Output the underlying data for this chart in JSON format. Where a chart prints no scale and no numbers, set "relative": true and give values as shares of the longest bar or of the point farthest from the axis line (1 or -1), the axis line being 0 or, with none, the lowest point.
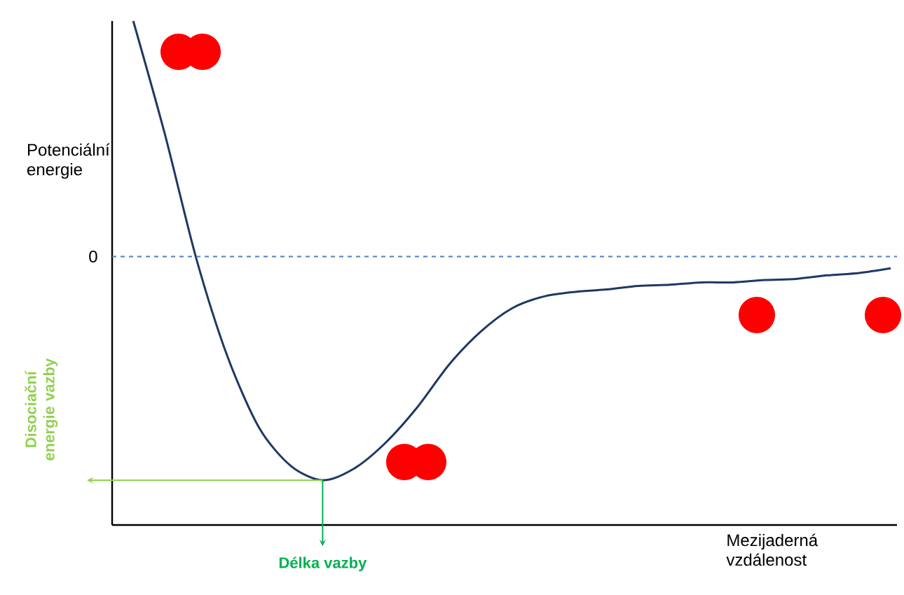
{
  "chart_data": {
    "type": "line",
    "relative": true,
    "xlabel": "Mezijaderná vzdálenost",
    "ylabel": "Potenciální energie",
    "categories": [
      null,
      null,
      null,
      null,
      null,
      null,
      null,
      null,
      null,
      null,
      null,
      null,
      null,
      null,
      null,
      null,
      null,
      null,
      null,
      null,
      null,
      null,
      null,
      null,
      null
    ],
    "values": [
      1.0,
      0.52,
      -0.01,
      -0.43,
      -0.73,
      -0.89,
      -0.95,
      -0.9,
      -0.79,
      -0.64,
      -0.46,
      -0.32,
      -0.22,
      -0.17,
      -0.15,
      -0.14,
      -0.125,
      -0.12,
      -0.11,
      -0.11,
      -0.1,
      -0.095,
      -0.08,
      -0.07,
      -0.05
    ],
    "color": "#1f3864",
    "line_style": "solid",
    "marker": "none",
    "ref_lines": [
      {
        "axis": "y",
        "value": 0,
        "label": "0",
        "color": "#4f81bd",
        "line_style": "dashed"
      }
    ],
    "annotations": [
      "Disociační energie vazby",
      "Délka vazby"
    ]
  }
}
